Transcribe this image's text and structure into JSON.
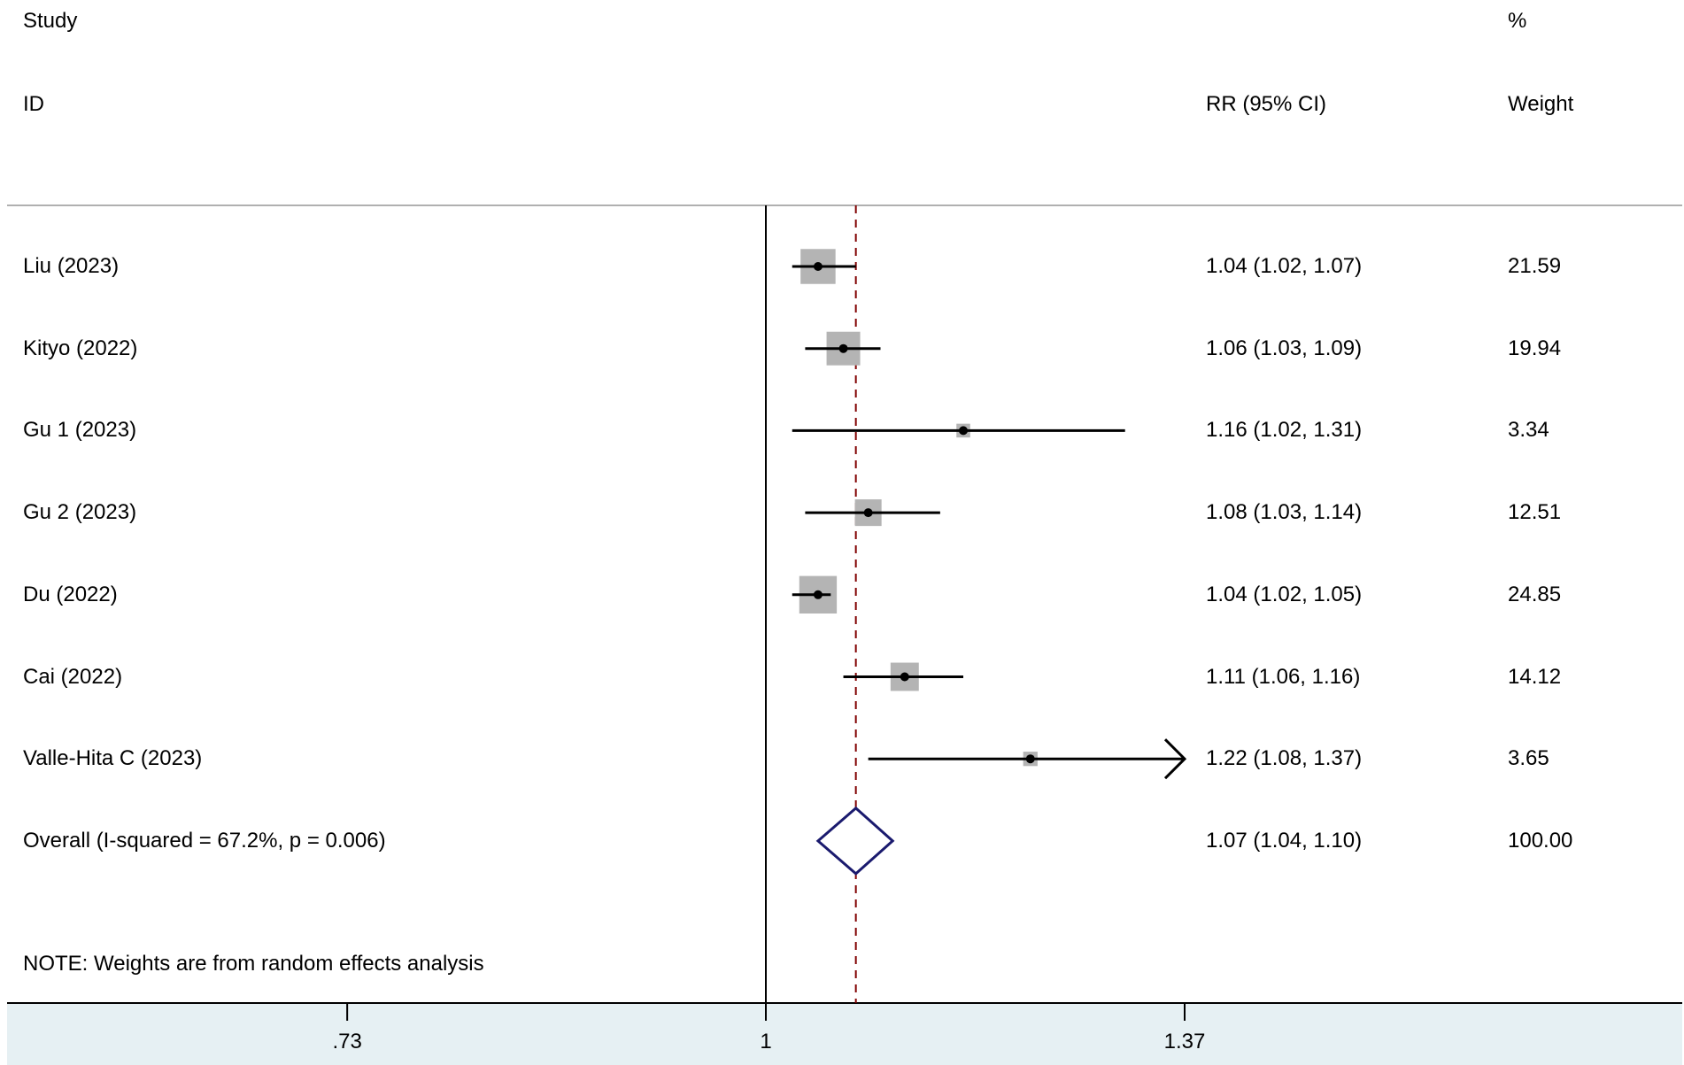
{
  "headers": {
    "study_line1": "Study",
    "study_line2": "ID",
    "ci_label": "RR (95% CI)",
    "weight_line1": "%",
    "weight_line2": "Weight"
  },
  "note": "NOTE: Weights are from random effects analysis",
  "colors": {
    "box": "#b4b4b4",
    "reference_line": "#800000",
    "diamond": "#1a1a6e",
    "axis_band": "#e6f0f3"
  },
  "chart_data": {
    "type": "forest",
    "measure": "RR",
    "log_scale": true,
    "xlim": [
      0.73,
      1.37
    ],
    "xticks": [
      {
        "value": 0.73,
        "label": ".73"
      },
      {
        "value": 1,
        "label": "1"
      },
      {
        "value": 1.37,
        "label": "1.37"
      }
    ],
    "null_line": 1,
    "studies": [
      {
        "id": "Liu (2023)",
        "rr": 1.04,
        "lo": 1.02,
        "hi": 1.07,
        "ci_text": "1.04 (1.02, 1.07)",
        "weight": 21.59,
        "weight_text": "21.59"
      },
      {
        "id": "Kityo (2022)",
        "rr": 1.06,
        "lo": 1.03,
        "hi": 1.09,
        "ci_text": "1.06 (1.03, 1.09)",
        "weight": 19.94,
        "weight_text": "19.94"
      },
      {
        "id": "Gu 1 (2023)",
        "rr": 1.16,
        "lo": 1.02,
        "hi": 1.31,
        "ci_text": "1.16 (1.02, 1.31)",
        "weight": 3.34,
        "weight_text": "3.34"
      },
      {
        "id": "Gu 2 (2023)",
        "rr": 1.08,
        "lo": 1.03,
        "hi": 1.14,
        "ci_text": "1.08 (1.03, 1.14)",
        "weight": 12.51,
        "weight_text": "12.51"
      },
      {
        "id": "Du (2022)",
        "rr": 1.04,
        "lo": 1.02,
        "hi": 1.05,
        "ci_text": "1.04 (1.02, 1.05)",
        "weight": 24.85,
        "weight_text": "24.85"
      },
      {
        "id": "Cai (2022)",
        "rr": 1.11,
        "lo": 1.06,
        "hi": 1.16,
        "ci_text": "1.11 (1.06, 1.16)",
        "weight": 14.12,
        "weight_text": "14.12"
      },
      {
        "id": "Valle-Hita C (2023)",
        "rr": 1.22,
        "lo": 1.08,
        "hi": 1.37,
        "ci_text": "1.22 (1.08, 1.37)",
        "weight": 3.65,
        "weight_text": "3.65",
        "truncated_upper": true
      }
    ],
    "overall": {
      "label": "Overall  (I-squared = 67.2%, p = 0.006)",
      "rr": 1.07,
      "lo": 1.04,
      "hi": 1.1,
      "ci_text": "1.07 (1.04, 1.10)",
      "weight_text": "100.00"
    }
  }
}
